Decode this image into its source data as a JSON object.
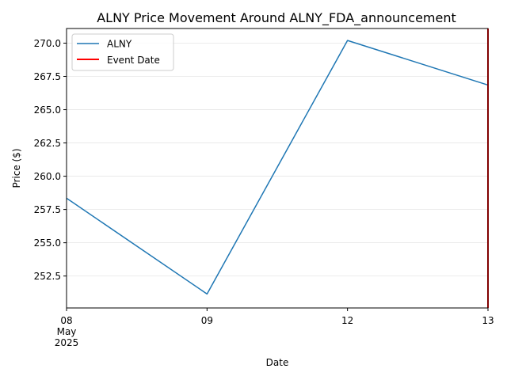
{
  "chart_data": {
    "type": "line",
    "title": "ALNY Price Movement Around ALNY_FDA_announcement",
    "xlabel": "Date",
    "ylabel": "Price ($)",
    "x": [
      "2025-05-08",
      "2025-05-09",
      "2025-05-12",
      "2025-05-13"
    ],
    "x_tick_labels": [
      {
        "lines": [
          "08",
          "May",
          "2025"
        ]
      },
      {
        "lines": [
          "09"
        ]
      },
      {
        "lines": [
          "12"
        ]
      },
      {
        "lines": [
          "13"
        ]
      }
    ],
    "series": [
      {
        "name": "ALNY",
        "color": "#1f77b4",
        "values": [
          258.35,
          251.15,
          270.2,
          266.85
        ]
      }
    ],
    "event": {
      "name": "Event Date",
      "date": "2025-05-13",
      "color": "#ff0000"
    },
    "ylim": [
      250.1,
      271.1
    ],
    "yticks": [
      252.5,
      255.0,
      257.5,
      260.0,
      262.5,
      265.0,
      267.5,
      270.0
    ],
    "grid": "y",
    "legend": "top-left"
  }
}
